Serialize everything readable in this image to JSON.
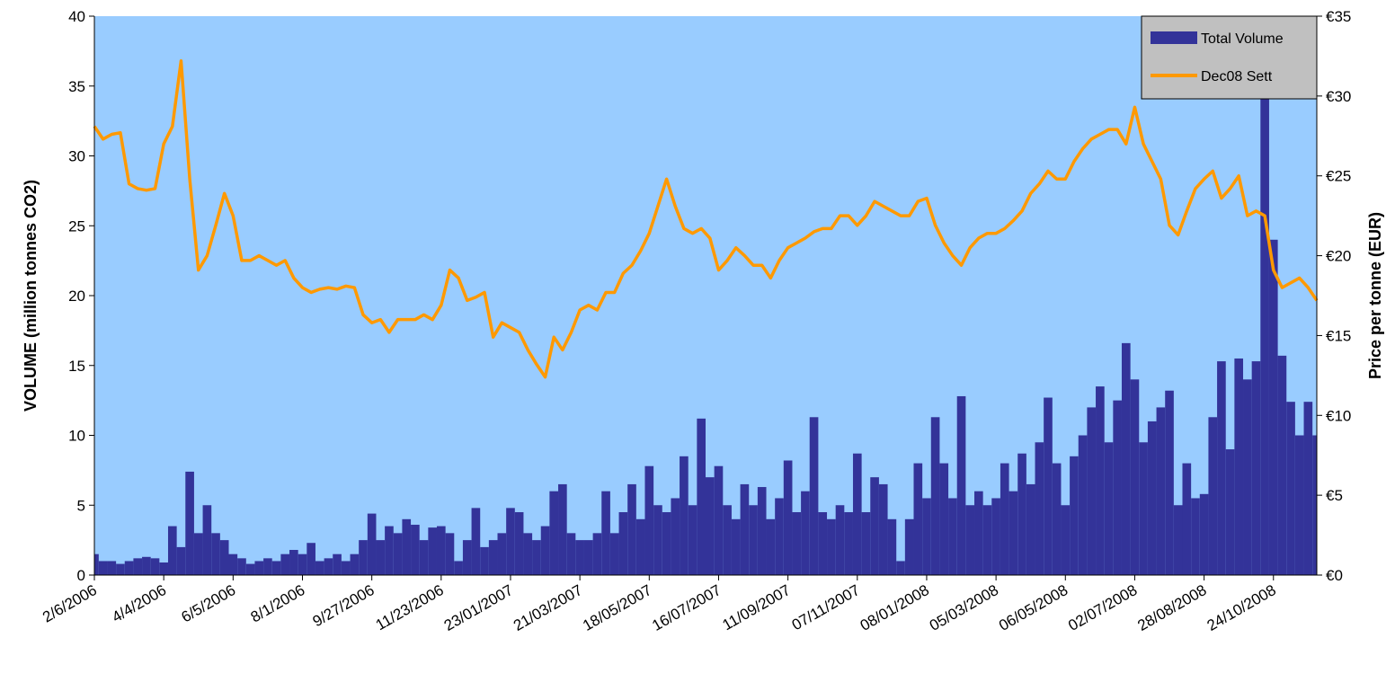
{
  "chart_data": {
    "type": "bar-line",
    "y_label": "VOLUME (million tonnes CO2)",
    "y2_label": "Price per tonne (EUR)",
    "categories": [
      "2/6/2006",
      null,
      null,
      null,
      null,
      null,
      null,
      null,
      "4/4/2006",
      null,
      null,
      null,
      null,
      null,
      null,
      null,
      "6/5/2006",
      null,
      null,
      null,
      null,
      null,
      null,
      null,
      "8/1/2006",
      null,
      null,
      null,
      null,
      null,
      null,
      null,
      "9/27/2006",
      null,
      null,
      null,
      null,
      null,
      null,
      null,
      "11/23/2006",
      null,
      null,
      null,
      null,
      null,
      null,
      null,
      "23/01/2007",
      null,
      null,
      null,
      null,
      null,
      null,
      null,
      "21/03/2007",
      null,
      null,
      null,
      null,
      null,
      null,
      null,
      "18/05/2007",
      null,
      null,
      null,
      null,
      null,
      null,
      null,
      "16/07/2007",
      null,
      null,
      null,
      null,
      null,
      null,
      null,
      "11/09/2007",
      null,
      null,
      null,
      null,
      null,
      null,
      null,
      "07/11/2007",
      null,
      null,
      null,
      null,
      null,
      null,
      null,
      "08/01/2008",
      null,
      null,
      null,
      null,
      null,
      null,
      null,
      "05/03/2008",
      null,
      null,
      null,
      null,
      null,
      null,
      null,
      "06/05/2008",
      null,
      null,
      null,
      null,
      null,
      null,
      null,
      "02/07/2008",
      null,
      null,
      null,
      null,
      null,
      null,
      null,
      "28/08/2008",
      null,
      null,
      null,
      null,
      null,
      null,
      null,
      "24/10/2008",
      null,
      null,
      null,
      null,
      null
    ],
    "series": [
      {
        "name": "Total Volume",
        "type": "bar",
        "axis": "y",
        "color": "#333399",
        "values": [
          1.5,
          1,
          1,
          0.8,
          1,
          1.2,
          1.3,
          1.2,
          0.9,
          3.5,
          2,
          7.4,
          3,
          5,
          3,
          2.5,
          1.5,
          1.2,
          0.8,
          1,
          1.2,
          1,
          1.5,
          1.8,
          1.5,
          2.3,
          1,
          1.2,
          1.5,
          1,
          1.5,
          2.5,
          4.4,
          2.5,
          3.5,
          3,
          4,
          3.6,
          2.5,
          3.4,
          3.5,
          3,
          1,
          2.5,
          4.8,
          2,
          2.5,
          3,
          4.8,
          4.5,
          3,
          2.5,
          3.5,
          6,
          6.5,
          3,
          2.5,
          2.5,
          3,
          6,
          3,
          4.5,
          6.5,
          4,
          7.8,
          5,
          4.5,
          5.5,
          8.5,
          5,
          11.2,
          7,
          7.8,
          5,
          4,
          6.5,
          5,
          6.3,
          4,
          5.5,
          8.2,
          4.5,
          6,
          11.3,
          4.5,
          4,
          5,
          4.5,
          8.7,
          4.5,
          7,
          6.5,
          4,
          1,
          4,
          8,
          5.5,
          11.3,
          8,
          5.5,
          12.8,
          5,
          6,
          5,
          5.5,
          8,
          6,
          8.7,
          6.5,
          9.5,
          12.7,
          8,
          5,
          8.5,
          10,
          12,
          13.5,
          9.5,
          12.5,
          16.6,
          14,
          9.5,
          11,
          12,
          13.2,
          5,
          8,
          5.5,
          5.8,
          11.3,
          15.3,
          9,
          15.5,
          14,
          15.3,
          40,
          24,
          15.7,
          12.4,
          10,
          12.4,
          10
        ]
      },
      {
        "name": "Dec08 Sett",
        "type": "line",
        "axis": "y2",
        "color": "#ff9900",
        "values": [
          28.1,
          27.3,
          27.6,
          27.7,
          24.5,
          24.2,
          24.1,
          24.2,
          27.0,
          28.1,
          32.2,
          24.8,
          19.1,
          20.0,
          21.9,
          23.9,
          22.5,
          19.7,
          19.7,
          20.0,
          19.7,
          19.4,
          19.7,
          18.6,
          18.0,
          17.7,
          17.9,
          18.0,
          17.9,
          18.1,
          18.0,
          16.3,
          15.8,
          16.0,
          15.2,
          16.0,
          16.0,
          16.0,
          16.3,
          16.0,
          16.9,
          19.1,
          18.6,
          17.2,
          17.4,
          17.7,
          14.9,
          15.8,
          15.5,
          15.2,
          14.1,
          13.2,
          12.4,
          14.9,
          14.1,
          15.2,
          16.6,
          16.9,
          16.6,
          17.7,
          17.7,
          18.9,
          19.4,
          20.3,
          21.4,
          23.1,
          24.8,
          23.1,
          21.7,
          21.4,
          21.7,
          21.1,
          19.1,
          19.7,
          20.5,
          20.0,
          19.4,
          19.4,
          18.6,
          19.7,
          20.5,
          20.8,
          21.1,
          21.5,
          21.7,
          21.7,
          22.5,
          22.5,
          21.9,
          22.5,
          23.4,
          23.1,
          22.8,
          22.5,
          22.5,
          23.4,
          23.6,
          21.9,
          20.8,
          20.0,
          19.4,
          20.5,
          21.1,
          21.4,
          21.4,
          21.7,
          22.2,
          22.8,
          23.9,
          24.5,
          25.3,
          24.8,
          24.8,
          25.9,
          26.7,
          27.3,
          27.6,
          27.9,
          27.9,
          27.0,
          29.3,
          27.0,
          25.9,
          24.8,
          21.9,
          21.3,
          22.8,
          24.2,
          24.8,
          25.3,
          23.6,
          24.2,
          25.0,
          22.5,
          22.8,
          22.5,
          19.1,
          18.0,
          18.3,
          18.6,
          18.0,
          17.2
        ]
      }
    ],
    "ylim": [
      0,
      40
    ],
    "yticks": [
      0,
      5,
      10,
      15,
      20,
      25,
      30,
      35,
      40
    ],
    "y2lim": [
      0,
      35
    ],
    "y2ticks": [
      {
        "value": 0,
        "label": "€0"
      },
      {
        "value": 5,
        "label": "€5"
      },
      {
        "value": 10,
        "label": "€10"
      },
      {
        "value": 15,
        "label": "€15"
      },
      {
        "value": 20,
        "label": "€20"
      },
      {
        "value": 25,
        "label": "€25"
      },
      {
        "value": 30,
        "label": "€30"
      },
      {
        "value": 35,
        "label": "€35"
      }
    ],
    "legend": "top-right",
    "plot_color": "#99ccff"
  }
}
